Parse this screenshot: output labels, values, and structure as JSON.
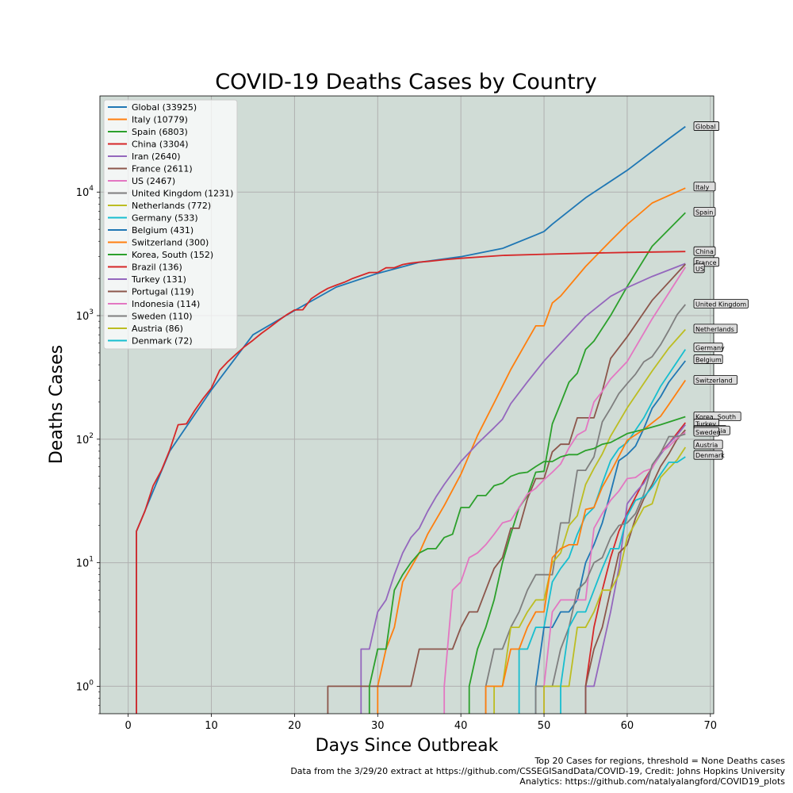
{
  "chart_data": {
    "type": "line",
    "title": "COVID-19 Deaths Cases by Country",
    "xlabel": "Days Since Outbreak",
    "ylabel": "Deaths Cases",
    "xlim": [
      -3.4,
      70.4
    ],
    "ylim": [
      0.6,
      60000
    ],
    "yscale": "log",
    "grid": true,
    "legend_position": "top-left",
    "plot_background": "#d0dcd6",
    "x_ticks": [
      0,
      10,
      20,
      30,
      40,
      50,
      60,
      70
    ],
    "y_ticks": [
      {
        "value": 1,
        "base": "10",
        "exp": "0"
      },
      {
        "value": 10,
        "base": "10",
        "exp": "1"
      },
      {
        "value": 100,
        "base": "10",
        "exp": "2"
      },
      {
        "value": 1000,
        "base": "10",
        "exp": "3"
      },
      {
        "value": 10000,
        "base": "10",
        "exp": "4"
      }
    ],
    "series": [
      {
        "name": "Global",
        "legend": "Global (33925)",
        "color": "#1f77b4",
        "x": [
          1,
          5,
          10,
          15,
          20,
          25,
          30,
          35,
          40,
          45,
          49,
          50,
          51,
          55,
          60,
          65,
          67
        ],
        "y": [
          18,
          80,
          250,
          700,
          1100,
          1700,
          2200,
          2700,
          3000,
          3500,
          4500,
          4800,
          5500,
          9000,
          15000,
          27000,
          33925
        ]
      },
      {
        "name": "Italy",
        "legend": "Italy (10779)",
        "color": "#ff7f0e",
        "x": [
          30,
          31,
          32,
          33,
          35,
          36,
          38,
          40,
          42,
          44,
          46,
          48,
          49,
          50,
          51,
          52,
          55,
          58,
          60,
          63,
          67
        ],
        "y": [
          1,
          2,
          3,
          7,
          12,
          17,
          29,
          52,
          107,
          197,
          366,
          631,
          827,
          827,
          1266,
          1441,
          2503,
          4032,
          5476,
          8165,
          10779
        ]
      },
      {
        "name": "Spain",
        "legend": "Spain (6803)",
        "color": "#2ca02c",
        "x": [
          41,
          42,
          43,
          44,
          45,
          46,
          47,
          48,
          49,
          50,
          51,
          52,
          53,
          54,
          55,
          56,
          58,
          60,
          63,
          67
        ],
        "y": [
          1,
          2,
          3,
          5,
          10,
          17,
          28,
          35,
          54,
          55,
          133,
          195,
          289,
          342,
          533,
          623,
          1002,
          1720,
          3647,
          6803
        ]
      },
      {
        "name": "China",
        "legend": "China (3304)",
        "color": "#d62728",
        "x": [
          1,
          2,
          3,
          4,
          5,
          6,
          7,
          8,
          9,
          10,
          11,
          12,
          13,
          14,
          15,
          16,
          17,
          18,
          19,
          20,
          21,
          22,
          23,
          24,
          25,
          26,
          27,
          28,
          29,
          30,
          31,
          32,
          33,
          34,
          35,
          36,
          38,
          40,
          45,
          50,
          55,
          60,
          67
        ],
        "y": [
          18,
          26,
          42,
          56,
          82,
          131,
          133,
          171,
          213,
          259,
          361,
          425,
          490,
          562,
          632,
          717,
          803,
          904,
          1011,
          1111,
          1116,
          1368,
          1520,
          1662,
          1765,
          1863,
          2002,
          2114,
          2236,
          2236,
          2441,
          2443,
          2593,
          2663,
          2715,
          2744,
          2835,
          2912,
          3070,
          3139,
          3200,
          3250,
          3304
        ]
      },
      {
        "name": "Iran",
        "legend": "Iran (2640)",
        "color": "#9467bd",
        "x": [
          28,
          29,
          30,
          31,
          32,
          33,
          34,
          35,
          36,
          37,
          38,
          40,
          42,
          44,
          45,
          46,
          48,
          50,
          55,
          58,
          60,
          63,
          67
        ],
        "y": [
          2,
          2,
          4,
          5,
          8,
          12,
          16,
          19,
          26,
          34,
          43,
          66,
          92,
          124,
          145,
          194,
          291,
          429,
          988,
          1433,
          1685,
          2077,
          2640
        ]
      },
      {
        "name": "France",
        "legend": "France (2611)",
        "color": "#8c564b",
        "x": [
          24,
          30,
          34,
          35,
          39,
          40,
          41,
          42,
          43,
          44,
          45,
          46,
          47,
          48,
          49,
          50,
          51,
          52,
          53,
          54,
          55,
          56,
          57,
          58,
          60,
          63,
          67
        ],
        "y": [
          1,
          1,
          1,
          2,
          2,
          3,
          4,
          4,
          6,
          9,
          11,
          19,
          19,
          33,
          48,
          48,
          79,
          91,
          91,
          149,
          149,
          149,
          244,
          450,
          674,
          1331,
          2611
        ]
      },
      {
        "name": "US",
        "legend": "US (2467)",
        "color": "#e377c2",
        "x": [
          38,
          39,
          40,
          41,
          42,
          43,
          44,
          45,
          46,
          47,
          48,
          49,
          50,
          51,
          52,
          53,
          54,
          55,
          56,
          57,
          58,
          60,
          63,
          67
        ],
        "y": [
          1,
          6,
          7,
          11,
          12,
          14,
          17,
          21,
          22,
          28,
          36,
          40,
          47,
          54,
          63,
          85,
          108,
          118,
          200,
          244,
          307,
          425,
          942,
          2467
        ]
      },
      {
        "name": "United Kingdom",
        "legend": "United Kingdom (1231)",
        "color": "#7f7f7f",
        "x": [
          43,
          44,
          45,
          46,
          47,
          48,
          49,
          50,
          51,
          52,
          53,
          54,
          55,
          56,
          57,
          58,
          59,
          60,
          61,
          62,
          63,
          64,
          65,
          66,
          67
        ],
        "y": [
          1,
          2,
          2,
          3,
          4,
          6,
          8,
          8,
          8,
          21,
          21,
          56,
          56,
          72,
          138,
          178,
          234,
          282,
          336,
          423,
          466,
          580,
          761,
          1019,
          1231
        ]
      },
      {
        "name": "Netherlands",
        "legend": "Netherlands (772)",
        "color": "#bcbd22",
        "x": [
          44,
          45,
          46,
          47,
          48,
          49,
          50,
          51,
          52,
          53,
          54,
          55,
          56,
          57,
          58,
          60,
          63,
          65,
          67
        ],
        "y": [
          1,
          1,
          3,
          3,
          4,
          5,
          5,
          10,
          12,
          20,
          24,
          43,
          58,
          76,
          106,
          179,
          356,
          546,
          772
        ]
      },
      {
        "name": "Germany",
        "legend": "Germany (533)",
        "color": "#17becf",
        "x": [
          47,
          48,
          49,
          50,
          51,
          52,
          53,
          54,
          55,
          56,
          57,
          58,
          59,
          60,
          62,
          64,
          67
        ],
        "y": [
          2,
          2,
          3,
          3,
          7,
          9,
          11,
          17,
          24,
          28,
          44,
          67,
          84,
          94,
          149,
          267,
          533
        ]
      },
      {
        "name": "Belgium",
        "legend": "Belgium (431)",
        "color": "#1f77b4",
        "x": [
          49,
          50,
          51,
          52,
          53,
          54,
          55,
          56,
          57,
          58,
          59,
          60,
          61,
          62,
          63,
          64,
          65,
          67
        ],
        "y": [
          1,
          3,
          3,
          4,
          4,
          5,
          10,
          14,
          21,
          37,
          67,
          75,
          88,
          122,
          178,
          220,
          289,
          431
        ]
      },
      {
        "name": "Switzerland",
        "legend": "Switzerland (300)",
        "color": "#ff7f0e",
        "x": [
          43,
          44,
          45,
          46,
          47,
          48,
          49,
          50,
          51,
          52,
          53,
          54,
          55,
          56,
          57,
          58,
          60,
          62,
          64,
          65,
          67
        ],
        "y": [
          1,
          1,
          1,
          2,
          2,
          3,
          4,
          4,
          11,
          13,
          14,
          14,
          27,
          28,
          41,
          54,
          98,
          120,
          153,
          191,
          300
        ]
      },
      {
        "name": "Korea, South",
        "legend": "Korea, South (152)",
        "color": "#2ca02c",
        "x": [
          29,
          30,
          31,
          32,
          33,
          34,
          35,
          36,
          37,
          38,
          39,
          40,
          41,
          42,
          43,
          44,
          45,
          46,
          47,
          48,
          49,
          50,
          51,
          52,
          53,
          54,
          55,
          56,
          57,
          58,
          60,
          62,
          64,
          67
        ],
        "y": [
          1,
          2,
          2,
          6,
          8,
          10,
          12,
          13,
          13,
          16,
          17,
          28,
          28,
          35,
          35,
          42,
          44,
          50,
          53,
          54,
          60,
          66,
          66,
          72,
          75,
          75,
          81,
          84,
          91,
          94,
          111,
          120,
          131,
          152
        ]
      },
      {
        "name": "Brazil",
        "legend": "Brazil (136)",
        "color": "#d62728",
        "x": [
          55,
          56,
          57,
          58,
          59,
          60,
          61,
          62,
          63,
          64,
          65,
          67
        ],
        "y": [
          1,
          3,
          6,
          11,
          18,
          25,
          34,
          46,
          59,
          77,
          92,
          136
        ]
      },
      {
        "name": "Turkey",
        "legend": "Turkey (131)",
        "color": "#9467bd",
        "x": [
          55,
          56,
          57,
          58,
          59,
          60,
          61,
          62,
          63,
          64,
          65,
          66,
          67
        ],
        "y": [
          1,
          1,
          2,
          4,
          9,
          30,
          37,
          44,
          59,
          75,
          92,
          108,
          131
        ]
      },
      {
        "name": "Portugal",
        "legend": "Portugal (119)",
        "color": "#8c564b",
        "x": [
          55,
          56,
          57,
          58,
          59,
          60,
          61,
          62,
          63,
          64,
          65,
          66,
          67
        ],
        "y": [
          1,
          2,
          3,
          6,
          12,
          14,
          23,
          33,
          43,
          60,
          76,
          100,
          119
        ]
      },
      {
        "name": "Indonesia",
        "legend": "Indonesia (114)",
        "color": "#e377c2",
        "x": [
          50,
          51,
          52,
          53,
          54,
          55,
          56,
          57,
          58,
          59,
          60,
          61,
          62,
          63,
          64,
          65,
          66,
          67
        ],
        "y": [
          1,
          4,
          5,
          5,
          5,
          5,
          19,
          25,
          32,
          38,
          48,
          49,
          55,
          58,
          78,
          87,
          102,
          114
        ]
      },
      {
        "name": "Sweden",
        "legend": "Sweden (110)",
        "color": "#7f7f7f",
        "x": [
          49,
          50,
          51,
          52,
          53,
          54,
          55,
          56,
          57,
          58,
          59,
          60,
          61,
          62,
          63,
          64,
          65,
          66,
          67
        ],
        "y": [
          1,
          1,
          1,
          2,
          3,
          6,
          7,
          10,
          11,
          16,
          20,
          21,
          25,
          36,
          62,
          77,
          105,
          105,
          110
        ]
      },
      {
        "name": "Austria",
        "legend": "Austria (86)",
        "color": "#bcbd22",
        "x": [
          50,
          51,
          52,
          53,
          54,
          55,
          56,
          57,
          58,
          59,
          60,
          61,
          62,
          63,
          64,
          65,
          66,
          67
        ],
        "y": [
          1,
          1,
          1,
          1,
          3,
          3,
          4,
          6,
          6,
          8,
          16,
          21,
          28,
          30,
          49,
          58,
          68,
          86
        ]
      },
      {
        "name": "Denmark",
        "legend": "Denmark (72)",
        "color": "#17becf",
        "x": [
          52,
          53,
          54,
          55,
          56,
          57,
          58,
          59,
          60,
          61,
          62,
          63,
          64,
          65,
          66,
          67
        ],
        "y": [
          1,
          3,
          4,
          4,
          6,
          9,
          13,
          13,
          24,
          32,
          34,
          41,
          52,
          65,
          65,
          72
        ]
      }
    ],
    "end_labels": [
      {
        "text": "Global",
        "y": 33925
      },
      {
        "text": "Italy",
        "y": 11000
      },
      {
        "text": "Spain",
        "y": 6900
      },
      {
        "text": "China",
        "y": 3304
      },
      {
        "text": "France",
        "y": 2700
      },
      {
        "text": "US",
        "y": 2400
      },
      {
        "text": "United Kingdom",
        "y": 1240
      },
      {
        "text": "Netherlands",
        "y": 780
      },
      {
        "text": "Germany",
        "y": 550
      },
      {
        "text": "Belgium",
        "y": 440
      },
      {
        "text": "Switzerland",
        "y": 300
      },
      {
        "text": "Korea, South",
        "y": 152
      },
      {
        "text": "Turkey",
        "y": 133
      },
      {
        "text": "Portugal",
        "y": 118
      },
      {
        "text": "Indonesia",
        "y": 117
      },
      {
        "text": "Sweden",
        "y": 114
      },
      {
        "text": "Austria",
        "y": 90
      },
      {
        "text": "Denmark",
        "y": 74
      }
    ]
  },
  "footer": {
    "line1": "Top 20 Cases for regions, threshold = None Deaths cases",
    "line2": "Data from the 3/29/20 extract at https://github.com/CSSEGISandData/COVID-19, Credit: Johns Hopkins University",
    "line3": "Analytics: https://github.com/natalyalangford/COVID19_plots"
  }
}
